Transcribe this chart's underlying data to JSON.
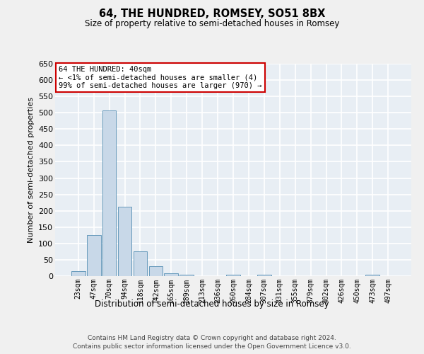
{
  "title": "64, THE HUNDRED, ROMSEY, SO51 8BX",
  "subtitle": "Size of property relative to semi-detached houses in Romsey",
  "xlabel_bottom": "Distribution of semi-detached houses by size in Romsey",
  "ylabel": "Number of semi-detached properties",
  "categories": [
    "23sqm",
    "47sqm",
    "70sqm",
    "94sqm",
    "118sqm",
    "142sqm",
    "165sqm",
    "189sqm",
    "213sqm",
    "236sqm",
    "260sqm",
    "284sqm",
    "307sqm",
    "331sqm",
    "355sqm",
    "379sqm",
    "402sqm",
    "426sqm",
    "450sqm",
    "473sqm",
    "497sqm"
  ],
  "values": [
    15,
    126,
    507,
    212,
    75,
    31,
    8,
    5,
    0,
    0,
    5,
    0,
    5,
    0,
    0,
    0,
    0,
    0,
    0,
    5,
    0
  ],
  "bar_color": "#c8d8e8",
  "bar_edge_color": "#6699bb",
  "background_color": "#e8eef4",
  "grid_color": "#ffffff",
  "annotation_text": "64 THE HUNDRED: 40sqm\n← <1% of semi-detached houses are smaller (4)\n99% of semi-detached houses are larger (970) →",
  "annotation_box_color": "#ffffff",
  "annotation_box_edge": "#cc0000",
  "ylim": [
    0,
    650
  ],
  "yticks": [
    0,
    50,
    100,
    150,
    200,
    250,
    300,
    350,
    400,
    450,
    500,
    550,
    600,
    650
  ],
  "footer_line1": "Contains HM Land Registry data © Crown copyright and database right 2024.",
  "footer_line2": "Contains public sector information licensed under the Open Government Licence v3.0."
}
